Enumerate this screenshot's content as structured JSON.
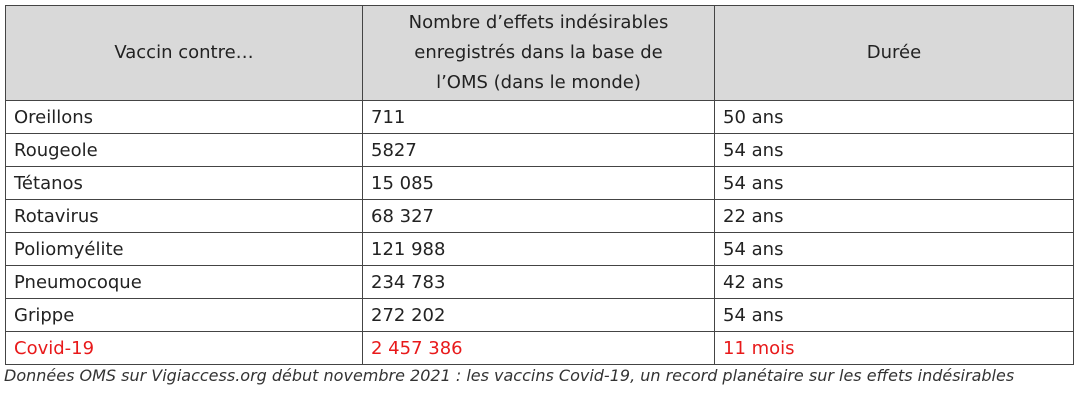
{
  "table": {
    "header": [
      "Vaccin contre…",
      "Nombre d’effets indésirables enregistrés dans la base de l’OMS (dans le monde)",
      "Durée"
    ],
    "rows": [
      [
        "Oreillons",
        "711",
        "50 ans"
      ],
      [
        "Rougeole",
        "5827",
        "54 ans"
      ],
      [
        "Tétanos",
        "15 085",
        "54 ans"
      ],
      [
        "Rotavirus",
        "68 327",
        "22 ans"
      ],
      [
        "Poliomyélite",
        "121 988",
        "54 ans"
      ],
      [
        "Pneumocoque",
        "234 783",
        "42 ans"
      ],
      [
        "Grippe",
        "272 202",
        "54 ans"
      ],
      [
        "Covid-19",
        "2 457 386",
        "11 mois"
      ]
    ]
  },
  "caption": "Données OMS sur Vigiaccess.org début novembre 2021 : les vaccins Covid-19, un record planétaire sur les effets indésirables"
}
